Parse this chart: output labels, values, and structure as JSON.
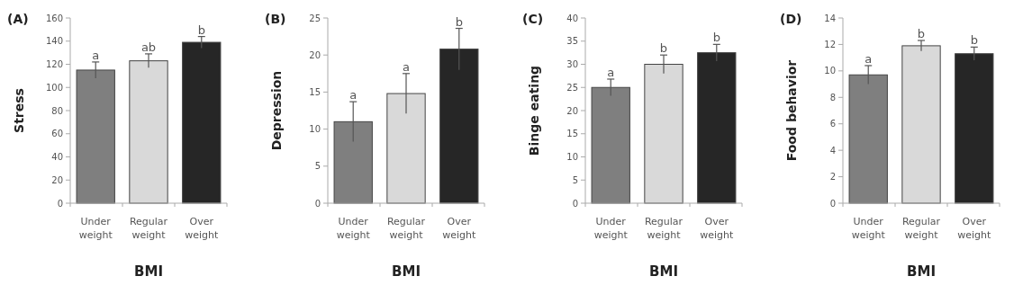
{
  "chart_data": [
    {
      "type": "bar",
      "title": "(A)",
      "ylabel": "Stress",
      "xlabel": "BMI",
      "categories": [
        "Under weight",
        "Regular weight",
        "Over weight"
      ],
      "values": [
        115,
        123,
        139
      ],
      "errors": [
        7,
        6,
        5
      ],
      "colors": [
        "#7f7f7f",
        "#d9d9d9",
        "#262626"
      ],
      "ylim": [
        0,
        160
      ],
      "yticks": [
        0,
        20,
        40,
        60,
        80,
        100,
        120,
        140,
        160
      ],
      "grid": false,
      "annotations": [
        {
          "text": "a",
          "x": "Under weight",
          "y": 122
        },
        {
          "text": "ab",
          "x": "Regular weight",
          "y": 129
        },
        {
          "text": "b",
          "x": "Over weight",
          "y": 144
        }
      ]
    },
    {
      "type": "bar",
      "title": "(B)",
      "ylabel": "Depression",
      "xlabel": "BMI",
      "categories": [
        "Under weight",
        "Regular weight",
        "Over weight"
      ],
      "values": [
        11,
        14.8,
        20.8
      ],
      "errors": [
        2.7,
        2.7,
        2.8
      ],
      "colors": [
        "#7f7f7f",
        "#d9d9d9",
        "#262626"
      ],
      "ylim": [
        0,
        25
      ],
      "yticks": [
        0,
        5,
        10,
        15,
        20,
        25
      ],
      "grid": false,
      "annotations": [
        {
          "text": "a",
          "x": "Under weight",
          "y": 13.7
        },
        {
          "text": "a",
          "x": "Regular weight",
          "y": 17.5
        },
        {
          "text": "b",
          "x": "Over weight",
          "y": 23.6
        }
      ]
    },
    {
      "type": "bar",
      "title": "(C)",
      "ylabel": "Binge eating",
      "xlabel": "BMI",
      "categories": [
        "Under weight",
        "Regular weight",
        "Over weight"
      ],
      "values": [
        25,
        30,
        32.5
      ],
      "errors": [
        1.8,
        2,
        1.8
      ],
      "colors": [
        "#7f7f7f",
        "#d9d9d9",
        "#262626"
      ],
      "ylim": [
        0,
        40
      ],
      "yticks": [
        0,
        5,
        10,
        15,
        20,
        25,
        30,
        35,
        40
      ],
      "grid": false,
      "annotations": [
        {
          "text": "a",
          "x": "Under weight",
          "y": 26.8
        },
        {
          "text": "b",
          "x": "Regular weight",
          "y": 32
        },
        {
          "text": "b",
          "x": "Over weight",
          "y": 34.3
        }
      ]
    },
    {
      "type": "bar",
      "title": "(D)",
      "ylabel": "Food behavior",
      "xlabel": "BMI",
      "categories": [
        "Under weight",
        "Regular weight",
        "Over weight"
      ],
      "values": [
        9.7,
        11.9,
        11.3
      ],
      "errors": [
        0.7,
        0.4,
        0.5
      ],
      "colors": [
        "#7f7f7f",
        "#d9d9d9",
        "#262626"
      ],
      "ylim": [
        0,
        14
      ],
      "yticks": [
        0,
        2,
        4,
        6,
        8,
        10,
        12,
        14
      ],
      "grid": false,
      "annotations": [
        {
          "text": "a",
          "x": "Under weight",
          "y": 10.4
        },
        {
          "text": "b",
          "x": "Regular weight",
          "y": 12.3
        },
        {
          "text": "b",
          "x": "Over weight",
          "y": 11.8
        }
      ]
    }
  ]
}
